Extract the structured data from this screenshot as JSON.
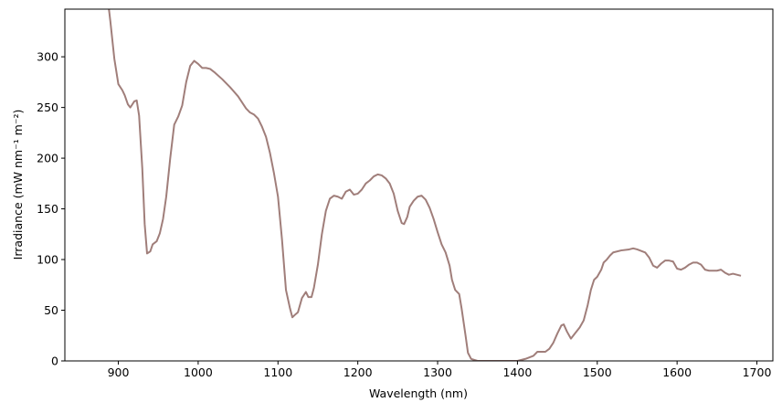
{
  "chart_data": {
    "type": "line",
    "xlabel": "Wavelength (nm)",
    "ylabel": "Irradiance (mW nm⁻¹ m⁻²)",
    "color": "#a07e7a",
    "xlim": [
      833,
      1720
    ],
    "ylim": [
      0,
      347
    ],
    "xticks": [
      900,
      1000,
      1100,
      1200,
      1300,
      1400,
      1500,
      1600,
      1700
    ],
    "yticks": [
      0,
      50,
      100,
      150,
      200,
      250,
      300
    ],
    "x": [
      887,
      890,
      895,
      900,
      905,
      908,
      912,
      915,
      920,
      923,
      926,
      930,
      933,
      936,
      940,
      943,
      948,
      952,
      956,
      960,
      965,
      970,
      975,
      980,
      985,
      990,
      995,
      1000,
      1005,
      1010,
      1015,
      1020,
      1030,
      1040,
      1050,
      1060,
      1065,
      1070,
      1075,
      1080,
      1085,
      1090,
      1095,
      1100,
      1105,
      1110,
      1115,
      1118,
      1122,
      1125,
      1130,
      1135,
      1138,
      1142,
      1145,
      1150,
      1155,
      1160,
      1165,
      1170,
      1175,
      1180,
      1185,
      1190,
      1195,
      1200,
      1205,
      1210,
      1215,
      1220,
      1225,
      1230,
      1235,
      1240,
      1245,
      1250,
      1255,
      1258,
      1262,
      1265,
      1270,
      1275,
      1280,
      1285,
      1290,
      1295,
      1300,
      1305,
      1310,
      1315,
      1318,
      1322,
      1327,
      1330,
      1335,
      1338,
      1342,
      1350,
      1360,
      1370,
      1380,
      1390,
      1400,
      1410,
      1420,
      1425,
      1430,
      1435,
      1440,
      1445,
      1450,
      1455,
      1458,
      1462,
      1467,
      1472,
      1478,
      1483,
      1488,
      1492,
      1496,
      1500,
      1505,
      1508,
      1512,
      1516,
      1520,
      1530,
      1540,
      1545,
      1550,
      1560,
      1565,
      1570,
      1575,
      1580,
      1585,
      1590,
      1595,
      1600,
      1605,
      1610,
      1615,
      1620,
      1625,
      1630,
      1635,
      1640,
      1645,
      1650,
      1655,
      1660,
      1665,
      1670,
      1675,
      1680
    ],
    "values": [
      355,
      335,
      298,
      273,
      267,
      262,
      253,
      250,
      256,
      257,
      242,
      190,
      135,
      106,
      108,
      115,
      118,
      126,
      140,
      162,
      200,
      233,
      241,
      252,
      275,
      291,
      296,
      293,
      289,
      289,
      288,
      285,
      278,
      270,
      261,
      249,
      245,
      243,
      239,
      231,
      221,
      205,
      185,
      162,
      120,
      70,
      52,
      43,
      46,
      48,
      62,
      68,
      63,
      63,
      72,
      95,
      125,
      148,
      160,
      163,
      162,
      160,
      167,
      169,
      164,
      165,
      169,
      175,
      178,
      182,
      184,
      183,
      180,
      175,
      165,
      148,
      136,
      135,
      142,
      152,
      158,
      162,
      163,
      159,
      151,
      140,
      127,
      115,
      107,
      94,
      80,
      70,
      66,
      52,
      25,
      8,
      2,
      0,
      0,
      0,
      0,
      0,
      0,
      2,
      5,
      9,
      9,
      9,
      12,
      18,
      27,
      35,
      36,
      29,
      22,
      27,
      33,
      40,
      55,
      70,
      80,
      83,
      90,
      97,
      100,
      104,
      107,
      109,
      110,
      111,
      110,
      107,
      102,
      94,
      92,
      96,
      99,
      99,
      98,
      91,
      90,
      92,
      95,
      97,
      97,
      95,
      90,
      89,
      89,
      89,
      90,
      87,
      85,
      86,
      85,
      84
    ]
  }
}
